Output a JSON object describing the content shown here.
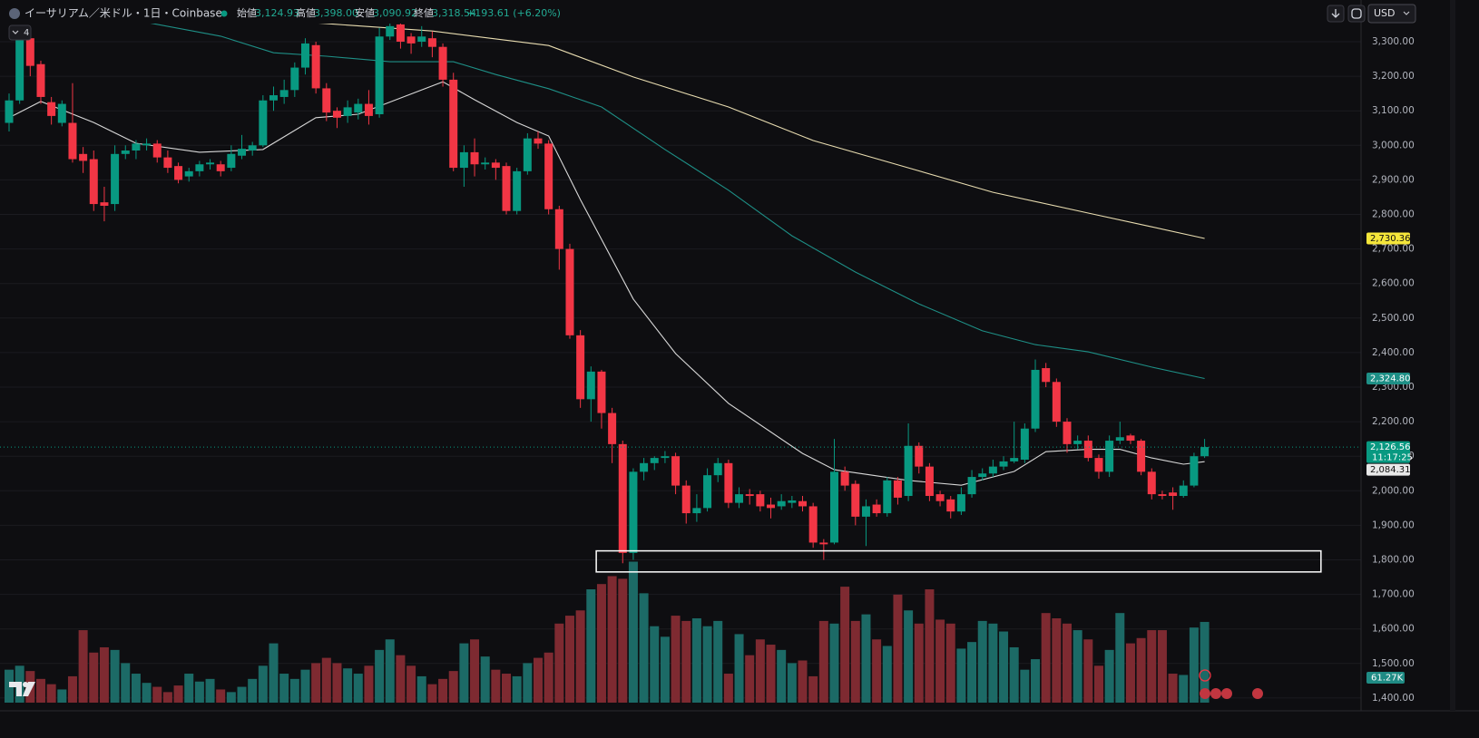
{
  "chart_data": {
    "type": "candlestick",
    "title": "イーサリアム／米ドル・1日・Coinbase",
    "header": [
      {
        "label": "始値",
        "value": "3,124.93"
      },
      {
        "label": "高値",
        "value": "3,398.00"
      },
      {
        "label": "安値",
        "value": "3,090.92"
      },
      {
        "label": "終値",
        "value": "3,318.54"
      }
    ],
    "change": "+193.61 (+6.20%)",
    "currency": "USD",
    "indicator_count": "4",
    "up_color": "#089981",
    "down_color": "#f23645",
    "ylim": [
      1373.5,
      3420.7
    ],
    "yticks": [
      {
        "value": 1400,
        "label": "1,400.00"
      },
      {
        "value": 1500,
        "label": "1,500.00"
      },
      {
        "value": 1600,
        "label": "1,600.00"
      },
      {
        "value": 1700,
        "label": "1,700.00"
      },
      {
        "value": 1800,
        "label": "1,800.00"
      },
      {
        "value": 1900,
        "label": "1,900.00"
      },
      {
        "value": 2000,
        "label": "2,000.00"
      },
      {
        "value": 2100,
        "label": "2,100.00"
      },
      {
        "value": 2200,
        "label": "2,200.00"
      },
      {
        "value": 2300,
        "label": "2,300.00"
      },
      {
        "value": 2400,
        "label": "2,400.00"
      },
      {
        "value": 2500,
        "label": "2,500.00"
      },
      {
        "value": 2600,
        "label": "2,600.00"
      },
      {
        "value": 2700,
        "label": "2,700.00"
      },
      {
        "value": 2800,
        "label": "2,800.00"
      },
      {
        "value": 2900,
        "label": "2,900.00"
      },
      {
        "value": 3000,
        "label": "3,000.00"
      },
      {
        "value": 3100,
        "label": "3,100.00"
      },
      {
        "value": 3200,
        "label": "3,200.00"
      },
      {
        "value": 3300,
        "label": "3,300.00"
      }
    ],
    "grid": true,
    "open": [
      3065,
      3130,
      3310,
      3235,
      3125,
      3065,
      3065,
      2975,
      2960,
      2835,
      2830,
      2975,
      2985,
      3000,
      3005,
      2965,
      2940,
      2910,
      2925,
      2945,
      2945,
      2935,
      2970,
      2985,
      3000,
      3130,
      3140,
      3160,
      3225,
      3290,
      3165,
      3100,
      3085,
      3095,
      3120,
      3090,
      3315,
      3350,
      3315,
      3300,
      3310,
      3285,
      3190,
      2935,
      2980,
      2945,
      2950,
      2940,
      2810,
      2925,
      3020,
      3005,
      2815,
      2700,
      2450,
      2265,
      2345,
      2225,
      2135,
      1820,
      2055,
      2080,
      2095,
      2100,
      2015,
      1935,
      1950,
      2045,
      2080,
      1965,
      1990,
      1990,
      1960,
      1955,
      1965,
      1970,
      1955,
      1850,
      1850,
      2055,
      2020,
      1925,
      1960,
      1935,
      2030,
      1985,
      2130,
      2070,
      1990,
      1975,
      1940,
      1990,
      2040,
      2050,
      2070,
      2085,
      2090,
      2180,
      2355,
      2315,
      2200,
      2135,
      2145,
      2095,
      2055,
      2145,
      2160,
      2145,
      2055,
      1990,
      1995,
      1985,
      2015,
      2100
    ],
    "high": [
      3150,
      3330,
      3325,
      3245,
      3140,
      3130,
      3180,
      2995,
      2985,
      2880,
      3000,
      3000,
      3015,
      3020,
      3015,
      2985,
      2950,
      2935,
      2955,
      2960,
      2955,
      3000,
      3030,
      3010,
      3145,
      3170,
      3190,
      3240,
      3310,
      3300,
      3180,
      3110,
      3130,
      3135,
      3160,
      3340,
      3370,
      3365,
      3325,
      3345,
      3330,
      3295,
      3210,
      3000,
      3020,
      2965,
      2960,
      2950,
      2935,
      3035,
      3040,
      3015,
      2825,
      2715,
      2465,
      2360,
      2350,
      2240,
      2145,
      2065,
      2095,
      2100,
      2115,
      2110,
      2030,
      1990,
      2065,
      2095,
      2090,
      2010,
      2005,
      2000,
      1980,
      1990,
      1985,
      1985,
      1965,
      1860,
      2150,
      2070,
      2030,
      1975,
      1975,
      2040,
      2040,
      2195,
      2140,
      2080,
      2000,
      1985,
      2010,
      2060,
      2065,
      2090,
      2100,
      2200,
      2195,
      2380,
      2370,
      2325,
      2210,
      2160,
      2160,
      2105,
      2160,
      2200,
      2165,
      2150,
      2065,
      2000,
      2010,
      2030,
      2110,
      2150
    ],
    "low": [
      3040,
      3120,
      3200,
      3120,
      3060,
      3055,
      2950,
      2920,
      2810,
      2780,
      2810,
      2960,
      2960,
      2985,
      2950,
      2920,
      2890,
      2895,
      2910,
      2930,
      2910,
      2925,
      2960,
      2970,
      2995,
      3100,
      3120,
      3140,
      3205,
      3150,
      3070,
      3050,
      3065,
      3075,
      3060,
      3080,
      3305,
      3280,
      3265,
      3285,
      3255,
      3170,
      2925,
      2880,
      2910,
      2930,
      2900,
      2800,
      2800,
      2915,
      2990,
      2800,
      2640,
      2440,
      2240,
      2200,
      2180,
      2080,
      1790,
      1800,
      2030,
      2060,
      2080,
      1990,
      1905,
      1910,
      1940,
      2025,
      1950,
      1950,
      1960,
      1940,
      1920,
      1945,
      1950,
      1940,
      1835,
      1800,
      1845,
      2000,
      1900,
      1840,
      1925,
      1925,
      1960,
      1970,
      2050,
      1970,
      1955,
      1920,
      1930,
      1980,
      2030,
      2040,
      2060,
      2080,
      2080,
      2170,
      2300,
      2185,
      2110,
      2120,
      2085,
      2035,
      2040,
      2135,
      2135,
      2045,
      1975,
      1975,
      1945,
      1980,
      2010,
      2095
    ],
    "close": [
      3130,
      3315,
      3230,
      3140,
      3085,
      3120,
      2960,
      2955,
      2830,
      2825,
      2975,
      2985,
      3005,
      3005,
      2965,
      2935,
      2900,
      2925,
      2945,
      2950,
      2925,
      2975,
      2990,
      3000,
      3130,
      3145,
      3160,
      3225,
      3295,
      3165,
      3095,
      3080,
      3110,
      3120,
      3085,
      3315,
      3345,
      3300,
      3295,
      3315,
      3285,
      3190,
      2935,
      2980,
      2945,
      2950,
      2935,
      2810,
      2925,
      3020,
      3005,
      2815,
      2700,
      2450,
      2265,
      2345,
      2225,
      2135,
      1820,
      2055,
      2080,
      2095,
      2100,
      2015,
      1935,
      1950,
      2045,
      2080,
      1965,
      1990,
      1985,
      1955,
      1950,
      1970,
      1972,
      1955,
      1850,
      1845,
      2055,
      2015,
      1925,
      1955,
      1935,
      2030,
      1980,
      2130,
      2070,
      1985,
      1970,
      1940,
      1990,
      2040,
      2050,
      2070,
      2085,
      2095,
      2180,
      2350,
      2315,
      2200,
      2135,
      2145,
      2095,
      2055,
      2145,
      2155,
      2145,
      2055,
      1990,
      1985,
      1985,
      2015,
      2100,
      2126.56
    ],
    "volume": {
      "ylim": [
        0,
        150
      ],
      "up_color": "#1c6a66",
      "down_color": "#7e2a31",
      "values": [
        25,
        28,
        24,
        18,
        14,
        10,
        20,
        55,
        38,
        42,
        40,
        30,
        22,
        15,
        12,
        8,
        13,
        22,
        16,
        18,
        10,
        8,
        12,
        18,
        28,
        45,
        22,
        18,
        25,
        30,
        34,
        30,
        26,
        22,
        28,
        40,
        48,
        36,
        28,
        20,
        14,
        18,
        24,
        45,
        48,
        35,
        25,
        22,
        20,
        30,
        34,
        38,
        60,
        66,
        70,
        86,
        90,
        96,
        94,
        107,
        83,
        58,
        50,
        66,
        62,
        64,
        58,
        62,
        22,
        52,
        36,
        48,
        44,
        40,
        30,
        32,
        20,
        62,
        60,
        88,
        62,
        67,
        48,
        43,
        82,
        70,
        60,
        86,
        63,
        60,
        41,
        46,
        62,
        60,
        54,
        42,
        25,
        33,
        68,
        64,
        60,
        55,
        48,
        28,
        40,
        68,
        45,
        49,
        55,
        55,
        22,
        21,
        57,
        61.27
      ],
      "last_label": "61.27K",
      "label_color": "#1f8b84"
    },
    "ma": [
      {
        "color": "#d8d8d8",
        "x": [
          0,
          3,
          8,
          12,
          18,
          24,
          29,
          33,
          37,
          41,
          44,
          48,
          51,
          54,
          59,
          63,
          68,
          75,
          78,
          85,
          90,
          95,
          98,
          102,
          105,
          108,
          111,
          113
        ],
        "values": [
          3080,
          3127,
          3066,
          3006,
          2980,
          2988,
          3080,
          3090,
          3137,
          3184,
          3132,
          3066,
          3027,
          2843,
          2555,
          2397,
          2253,
          2108,
          2061,
          2030,
          2016,
          2056,
          2113,
          2120,
          2120,
          2095,
          2077,
          2084.31
        ]
      },
      {
        "color": "#1e8f86",
        "x": [
          10,
          20,
          25,
          30,
          36,
          42,
          46,
          51,
          56,
          62,
          68,
          74,
          80,
          86,
          92,
          97,
          102,
          108,
          113
        ],
        "values": [
          3373,
          3316,
          3268,
          3258,
          3242,
          3242,
          3205,
          3164,
          3111,
          2988,
          2870,
          2738,
          2633,
          2541,
          2463,
          2423,
          2402,
          2358,
          2324.8
        ]
      },
      {
        "color": "#e8dcb0",
        "x": [
          0,
          25,
          40,
          51,
          59,
          68,
          76,
          85,
          93,
          102,
          108,
          113
        ],
        "values": [
          3394,
          3363,
          3331,
          3289,
          3198,
          3111,
          3014,
          2935,
          2864,
          2804,
          2764,
          2730.36
        ]
      }
    ],
    "price_labels": [
      {
        "value": 2730.36,
        "label": "2,730.36",
        "bg": "#f5e63a",
        "fg": "#111111"
      },
      {
        "value": 2324.8,
        "label": "2,324.80",
        "bg": "#1e8f86",
        "fg": "#ffffff"
      },
      {
        "value": 2126.56,
        "label": "2,126.56",
        "sub": "11:17:25",
        "bg": "#089981",
        "fg": "#ffffff"
      },
      {
        "value": 2084.31,
        "label": "2,084.31",
        "bg": "#e8e8e8",
        "fg": "#111111"
      }
    ],
    "annotation": {
      "price": [
        1765,
        1826
      ],
      "x": [
        55.5,
        124
      ],
      "color": "#ffffff"
    }
  }
}
